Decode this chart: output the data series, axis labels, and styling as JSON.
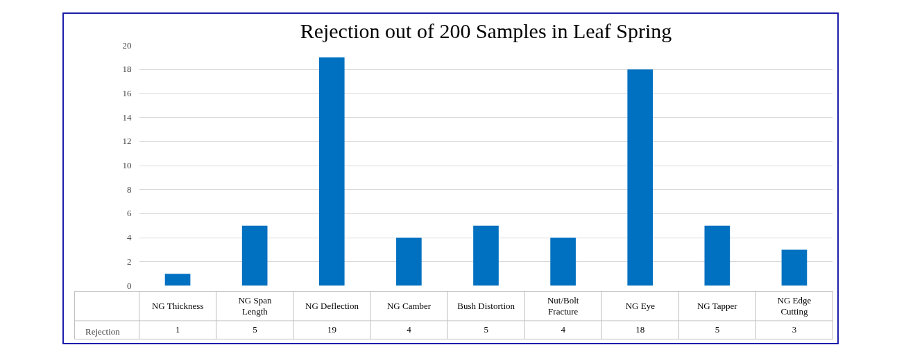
{
  "chart_data": {
    "type": "bar",
    "title": "Rejection out of 200 Samples in Leaf Spring",
    "categories": [
      "NG Thickness",
      "NG Span\nLength",
      "NG Deflection",
      "NG Camber",
      "Bush Distortion",
      "Nut/Bolt\nFracture",
      "NG Eye",
      "NG Tapper",
      "NG Edge\nCutting"
    ],
    "series": [
      {
        "name": "Rejection",
        "color": "#0070c0",
        "values": [
          1,
          5,
          19,
          4,
          5,
          4,
          18,
          5,
          3
        ]
      }
    ],
    "ylim": [
      0,
      20
    ],
    "yticks": [
      0,
      2,
      4,
      6,
      8,
      10,
      12,
      14,
      16,
      18,
      20
    ],
    "grid": "y",
    "legend": "bottom",
    "data_labels": true
  }
}
